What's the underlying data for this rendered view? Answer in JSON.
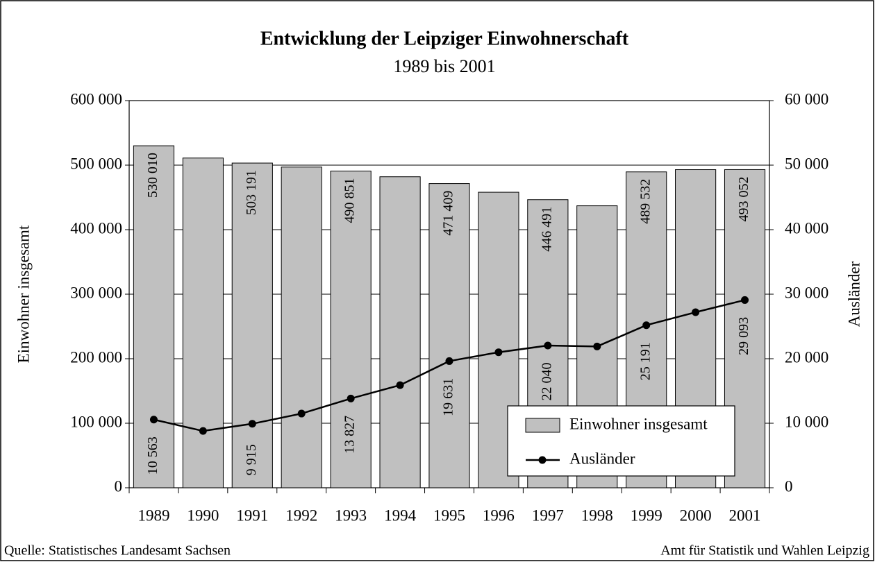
{
  "chart_data": {
    "type": "bar",
    "title": "Entwicklung der Leipziger Einwohnerschaft",
    "subtitle": "1989 bis 2001",
    "y_label": "Einwohner insgesamt",
    "y2_label": "Ausländer",
    "categories": [
      "1989",
      "1990",
      "1991",
      "1992",
      "1993",
      "1994",
      "1995",
      "1996",
      "1997",
      "1998",
      "1999",
      "2000",
      "2001"
    ],
    "series": [
      {
        "name": "Einwohner insgesamt",
        "type": "bar",
        "color": "#c0c0c0",
        "values": [
          530010,
          511000,
          503191,
          497000,
          490851,
          482000,
          471409,
          458000,
          446491,
          437000,
          489532,
          493000,
          493052
        ],
        "value_labels": [
          "530 010",
          null,
          "503 191",
          null,
          "490 851",
          null,
          "471 409",
          null,
          "446 491",
          null,
          "489 532",
          null,
          "493 052"
        ]
      },
      {
        "name": "Ausländer",
        "type": "line",
        "axis": "y2",
        "color": "#000000",
        "values": [
          10563,
          8800,
          9915,
          11500,
          13827,
          15900,
          19631,
          21000,
          22040,
          21900,
          25191,
          27200,
          29093
        ],
        "value_labels": [
          "10 563",
          null,
          "9 915",
          null,
          "13 827",
          null,
          "19 631",
          null,
          "22 040",
          null,
          "25 191",
          null,
          "29 093"
        ]
      }
    ],
    "ylim": [
      0,
      600000
    ],
    "yticks": [
      0,
      {
        "value": 100000,
        "label": "100 000"
      },
      {
        "value": 200000,
        "label": "200 000"
      },
      {
        "value": 300000,
        "label": "300 000"
      },
      {
        "value": 400000,
        "label": "400 000"
      },
      {
        "value": 500000,
        "label": "500 000"
      },
      {
        "value": 600000,
        "label": "600 000"
      }
    ],
    "y2lim": [
      0,
      60000
    ],
    "y2ticks": [
      0,
      {
        "value": 10000,
        "label": "10 000"
      },
      {
        "value": 20000,
        "label": "20 000"
      },
      {
        "value": 30000,
        "label": "30 000"
      },
      {
        "value": 40000,
        "label": "40 000"
      },
      {
        "value": 50000,
        "label": "50 000"
      },
      {
        "value": 60000,
        "label": "60 000"
      }
    ],
    "grid": true,
    "legend": "lower right",
    "source": "Quelle: Statistisches Landesamt Sachsen",
    "credit": "Amt für Statistik und Wahlen  Leipzig"
  }
}
